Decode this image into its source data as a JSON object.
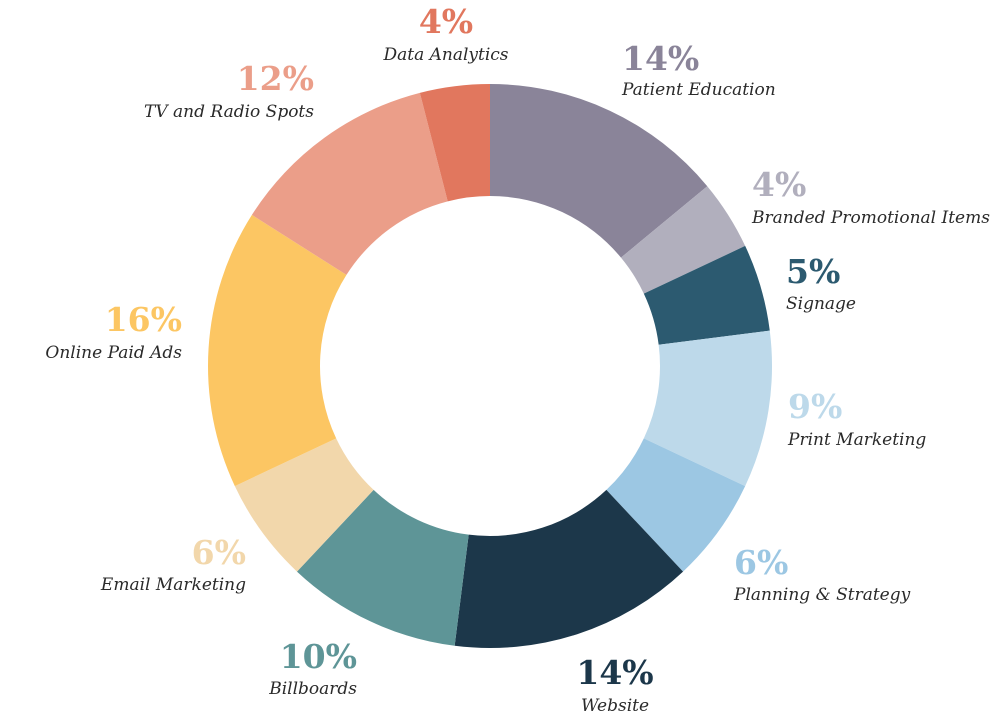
{
  "chart_data": {
    "type": "pie",
    "donut": true,
    "title": "",
    "slices": [
      {
        "label": "Patient Education",
        "percent_label": "14%",
        "value": 14,
        "color": "#8a8499"
      },
      {
        "label": "Branded Promotional Items",
        "percent_label": "4%",
        "value": 4,
        "color": "#b1afbd"
      },
      {
        "label": "Signage",
        "percent_label": "5%",
        "value": 5,
        "color": "#2c5a70"
      },
      {
        "label": "Print Marketing",
        "percent_label": "9%",
        "value": 9,
        "color": "#bdd9ea"
      },
      {
        "label": "Planning & Strategy",
        "percent_label": "6%",
        "value": 6,
        "color": "#9cc7e3"
      },
      {
        "label": "Website",
        "percent_label": "14%",
        "value": 14,
        "color": "#1c374a"
      },
      {
        "label": "Billboards",
        "percent_label": "10%",
        "value": 10,
        "color": "#5e9597"
      },
      {
        "label": "Email Marketing",
        "percent_label": "6%",
        "value": 6,
        "color": "#f2d7ab"
      },
      {
        "label": "Online Paid Ads",
        "percent_label": "16%",
        "value": 16,
        "color": "#fcc663"
      },
      {
        "label": "TV and Radio Spots",
        "percent_label": "12%",
        "value": 12,
        "color": "#eb9e89"
      },
      {
        "label": "Data Analytics",
        "percent_label": "4%",
        "value": 4,
        "color": "#e1775e"
      }
    ]
  }
}
